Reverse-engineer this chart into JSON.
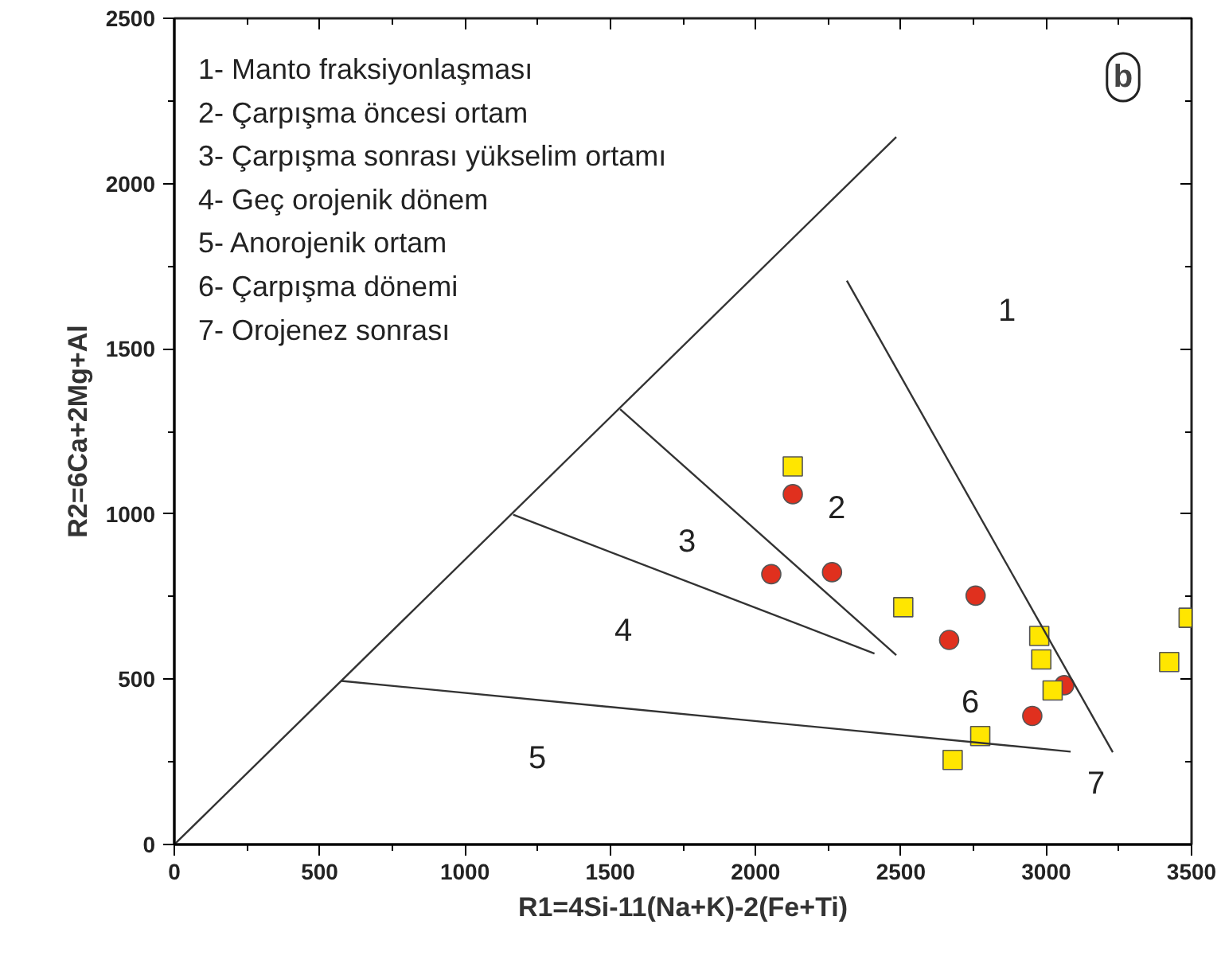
{
  "chart_data": {
    "type": "scatter",
    "title": "b",
    "xlabel": "R1=4Si-11(Na+K)-2(Fe+Ti)",
    "ylabel": "R2=6Ca+2Mg+Al",
    "xlim": [
      0,
      3500
    ],
    "ylim": [
      0,
      2500
    ],
    "xticks": [
      0,
      500,
      1000,
      1500,
      2000,
      2500,
      3000,
      3500
    ],
    "yticks": [
      0,
      500,
      1000,
      1500,
      2000,
      2500
    ],
    "grid": false,
    "series": [
      {
        "marker": "circle",
        "color": "#e0301e",
        "x": [
          2128,
          2054,
          2263,
          2757,
          2666,
          2952,
          3062
        ],
        "values": [
          1060,
          818,
          824,
          753,
          619,
          389,
          482
        ]
      },
      {
        "marker": "square",
        "color": "#ffe600",
        "x": [
          2128,
          2508,
          2976,
          2983,
          3022,
          2773,
          2678,
          3423,
          3490
        ],
        "values": [
          1144,
          718,
          631,
          560,
          466,
          328,
          256,
          552,
          686
        ]
      },
      {
        "type": "line",
        "marker": "none",
        "color": "#333333",
        "x": [
          0,
          2484
        ],
        "values": [
          0,
          2141
        ]
      },
      {
        "type": "line",
        "marker": "none",
        "color": "#333333",
        "x": [
          2314,
          3229
        ],
        "values": [
          1706,
          279
        ]
      },
      {
        "type": "line",
        "marker": "none",
        "color": "#333333",
        "x": [
          1534,
          2484
        ],
        "values": [
          1317,
          573
        ]
      },
      {
        "type": "line",
        "marker": "none",
        "color": "#333333",
        "x": [
          1166,
          2409
        ],
        "values": [
          998,
          578
        ]
      },
      {
        "type": "line",
        "marker": "none",
        "color": "#333333",
        "x": [
          575,
          3084
        ],
        "values": [
          495,
          281
        ]
      }
    ],
    "annotations": [
      "1- Manto fraksiyonlaşması",
      "2- Çarpışma öncesi ortam",
      "3- Çarpışma sonrası yükselim ortamı",
      "4- Geç orojenik dönem",
      "5- Anorojenik ortam",
      "6- Çarpışma dönemi",
      "7- Orojenez sonrası",
      "1",
      "2",
      "3",
      "4",
      "5",
      "6",
      "7"
    ]
  }
}
